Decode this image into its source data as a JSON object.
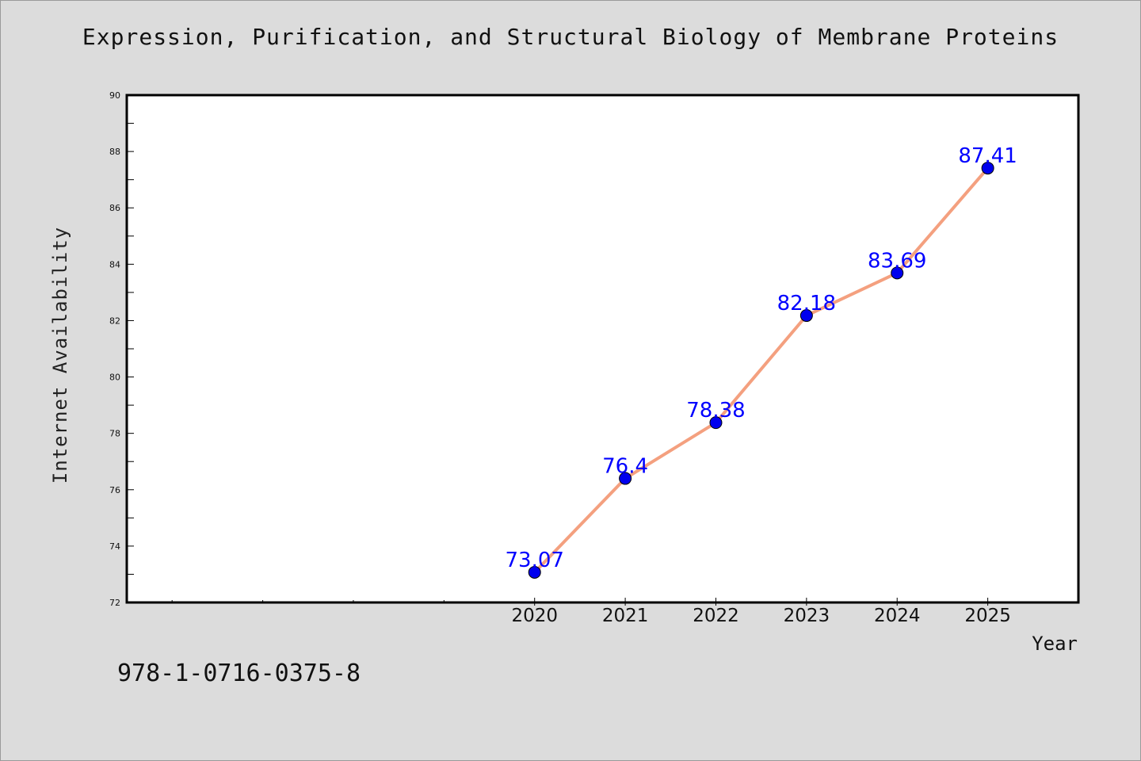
{
  "page": {
    "title": "Expression, Purification, and Structural Biology of Membrane Proteins",
    "isbn": "978-1-0716-0375-8"
  },
  "chart_data": {
    "type": "line",
    "title": "Expression, Purification, and Structural Biology of Membrane Proteins",
    "xlabel": "Year",
    "ylabel": "Internet Availability",
    "x": [
      2020,
      2021,
      2022,
      2023,
      2024,
      2025
    ],
    "series": [
      {
        "values": [
          73.07,
          76.4,
          78.38,
          82.18,
          83.69,
          87.41
        ],
        "line_color": "#f4a07f",
        "marker_color": "#0000ee",
        "label_color": "#0000ff"
      }
    ],
    "data_labels": [
      "73.07",
      "76.4",
      "78.38",
      "82.18",
      "83.69",
      "87.41"
    ],
    "xlim": [
      2015.5,
      2026
    ],
    "ylim": [
      72,
      90
    ],
    "yticks": [
      72,
      74,
      76,
      78,
      80,
      82,
      84,
      86,
      88,
      90
    ],
    "xticks": [
      2020,
      2021,
      2022,
      2023,
      2024,
      2025
    ],
    "grid": false,
    "legend": "none"
  }
}
